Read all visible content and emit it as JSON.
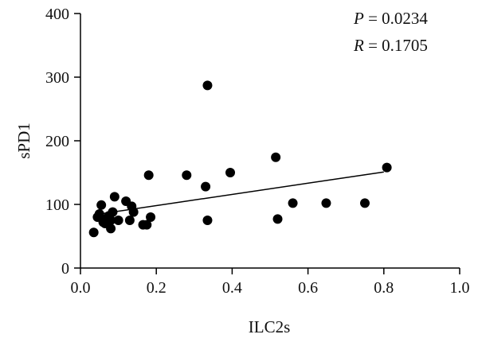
{
  "chart_data": {
    "type": "scatter",
    "title": "",
    "xlabel": "ILC2s",
    "ylabel": "sPD1",
    "xlim": [
      0.0,
      1.0
    ],
    "ylim": [
      0,
      400
    ],
    "x_ticks": [
      0.0,
      0.2,
      0.4,
      0.6,
      0.8,
      1.0
    ],
    "x_tick_labels": [
      "0.0",
      "0.2",
      "0.4",
      "0.6",
      "0.8",
      "1.0"
    ],
    "y_ticks": [
      0,
      100,
      200,
      300,
      400
    ],
    "y_tick_labels": [
      "0",
      "100",
      "200",
      "300",
      "400"
    ],
    "grid": false,
    "legend": "none",
    "annotations": {
      "p_symbol": "P",
      "p_value": " = 0.0234",
      "r_symbol": "R",
      "r_value": " = 0.1705"
    },
    "marker_color": "#000000",
    "points": [
      {
        "x": 0.035,
        "y": 56
      },
      {
        "x": 0.045,
        "y": 80
      },
      {
        "x": 0.05,
        "y": 85
      },
      {
        "x": 0.055,
        "y": 99
      },
      {
        "x": 0.06,
        "y": 72
      },
      {
        "x": 0.065,
        "y": 70
      },
      {
        "x": 0.07,
        "y": 78
      },
      {
        "x": 0.075,
        "y": 82
      },
      {
        "x": 0.08,
        "y": 62
      },
      {
        "x": 0.08,
        "y": 75
      },
      {
        "x": 0.085,
        "y": 88
      },
      {
        "x": 0.09,
        "y": 112
      },
      {
        "x": 0.1,
        "y": 75
      },
      {
        "x": 0.12,
        "y": 105
      },
      {
        "x": 0.13,
        "y": 75
      },
      {
        "x": 0.135,
        "y": 97
      },
      {
        "x": 0.14,
        "y": 88
      },
      {
        "x": 0.165,
        "y": 68
      },
      {
        "x": 0.175,
        "y": 68
      },
      {
        "x": 0.18,
        "y": 146
      },
      {
        "x": 0.185,
        "y": 80
      },
      {
        "x": 0.28,
        "y": 146
      },
      {
        "x": 0.33,
        "y": 128
      },
      {
        "x": 0.335,
        "y": 287
      },
      {
        "x": 0.335,
        "y": 75
      },
      {
        "x": 0.395,
        "y": 150
      },
      {
        "x": 0.515,
        "y": 174
      },
      {
        "x": 0.52,
        "y": 77
      },
      {
        "x": 0.56,
        "y": 102
      },
      {
        "x": 0.648,
        "y": 102
      },
      {
        "x": 0.75,
        "y": 102
      },
      {
        "x": 0.808,
        "y": 158
      }
    ],
    "trendline": {
      "x": [
        0.04,
        0.8
      ],
      "y": [
        84,
        151
      ]
    }
  }
}
